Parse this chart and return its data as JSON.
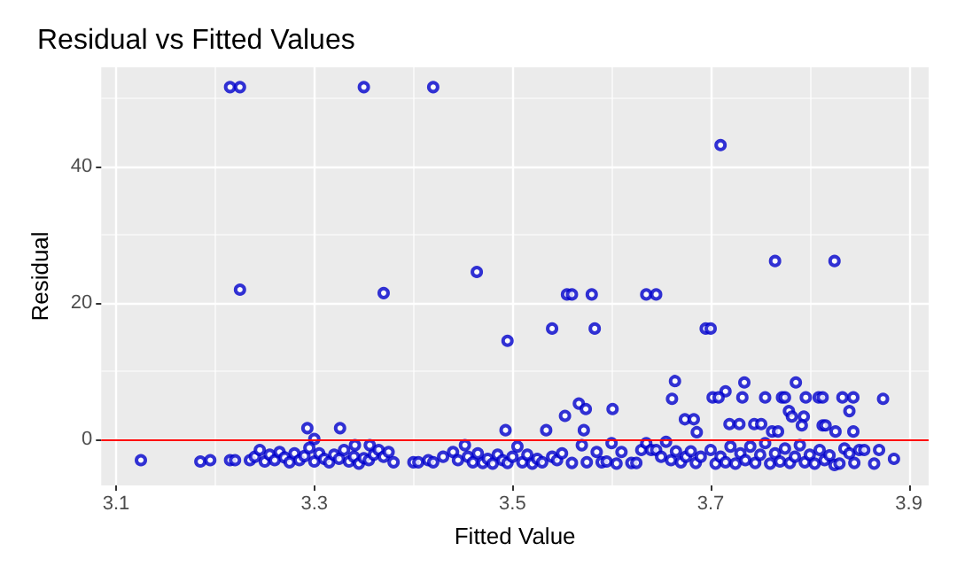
{
  "chart_data": {
    "type": "scatter",
    "title": "Residual vs Fitted Values",
    "xlabel": "Fitted Value",
    "ylabel": "Residual",
    "xlim": [
      3.085,
      3.92
    ],
    "xticks": [
      3.1,
      {
        "value": 3.2,
        "label": null
      },
      3.3,
      {
        "value": 3.4,
        "label": null
      },
      3.5,
      {
        "value": 3.6,
        "label": null
      },
      3.7,
      {
        "value": 3.8,
        "label": null
      },
      3.9
    ],
    "ylim": [
      -6.7,
      54.6
    ],
    "yticks": [
      0,
      {
        "value": 10,
        "label": null
      },
      20,
      {
        "value": 30,
        "label": null
      },
      40,
      {
        "value": 50,
        "label": null
      }
    ],
    "grid": true,
    "marker": "circle",
    "ref_lines": [
      {
        "axis": "y",
        "value": 0,
        "label": null,
        "color": "#ff0000",
        "line_style": "solid"
      }
    ],
    "series": [
      {
        "color": "#0000cc",
        "x": [
          3.215,
          3.225,
          3.225,
          3.35,
          3.37,
          3.42,
          3.464,
          3.495,
          3.54,
          3.555,
          3.56,
          3.58,
          3.583,
          3.635,
          3.645,
          3.695,
          3.7,
          3.71,
          3.765,
          3.825,
          3.664,
          3.661,
          3.734,
          3.786,
          3.715,
          3.702,
          3.708,
          3.732,
          3.755,
          3.772,
          3.775,
          3.796,
          3.809,
          3.813,
          3.833,
          3.844,
          3.874,
          3.84,
          3.779,
          3.782,
          3.794,
          3.674,
          3.683,
          3.553,
          3.567,
          3.574,
          3.601,
          3.493,
          3.534,
          3.572,
          3.686,
          3.719,
          3.729,
          3.744,
          3.751,
          3.762,
          3.768,
          3.792,
          3.813,
          3.816,
          3.844,
          3.826,
          3.293,
          3.326,
          3.3,
          3.452,
          3.341,
          3.356,
          3.125,
          3.185,
          3.195,
          3.215,
          3.22,
          3.235,
          3.24,
          3.245,
          3.25,
          3.255,
          3.26,
          3.265,
          3.27,
          3.275,
          3.28,
          3.285,
          3.29,
          3.295,
          3.3,
          3.305,
          3.31,
          3.315,
          3.32,
          3.325,
          3.33,
          3.335,
          3.34,
          3.345,
          3.35,
          3.355,
          3.36,
          3.365,
          3.37,
          3.375,
          3.38,
          3.4,
          3.405,
          3.415,
          3.42,
          3.43,
          3.44,
          3.445,
          3.455,
          3.46,
          3.465,
          3.47,
          3.475,
          3.48,
          3.485,
          3.49,
          3.495,
          3.5,
          3.505,
          3.51,
          3.515,
          3.52,
          3.525,
          3.53,
          3.54,
          3.545,
          3.55,
          3.56,
          3.57,
          3.575,
          3.585,
          3.59,
          3.595,
          3.6,
          3.605,
          3.61,
          3.62,
          3.625,
          3.63,
          3.635,
          3.64,
          3.645,
          3.65,
          3.655,
          3.66,
          3.665,
          3.67,
          3.675,
          3.68,
          3.685,
          3.69,
          3.7,
          3.705,
          3.71,
          3.715,
          3.72,
          3.725,
          3.73,
          3.735,
          3.74,
          3.745,
          3.75,
          3.755,
          3.76,
          3.765,
          3.77,
          3.775,
          3.78,
          3.785,
          3.79,
          3.795,
          3.8,
          3.805,
          3.81,
          3.815,
          3.82,
          3.825,
          3.83,
          3.835,
          3.84,
          3.845,
          3.85,
          3.855,
          3.865,
          3.87,
          3.885
        ],
        "values": [
          51.7,
          51.7,
          22,
          51.7,
          21.5,
          51.7,
          24.6,
          14.5,
          16.3,
          21.3,
          21.3,
          21.3,
          16.3,
          21.3,
          21.3,
          16.3,
          16.3,
          43.2,
          26.2,
          26.2,
          8.6,
          6,
          8.4,
          8.4,
          7.1,
          6.2,
          6.2,
          6.2,
          6.2,
          6.2,
          6.2,
          6.2,
          6.2,
          6.2,
          6.2,
          6.2,
          6,
          4.2,
          4.2,
          3.4,
          3.4,
          3,
          3,
          3.5,
          5.3,
          4.5,
          4.5,
          1.4,
          1.4,
          1.4,
          1.1,
          2.3,
          2.3,
          2.3,
          2.3,
          1.2,
          1.2,
          2.1,
          2.1,
          2.1,
          1.2,
          1.2,
          1.7,
          1.7,
          0.1,
          -0.8,
          -0.8,
          -0.8,
          -3,
          -3.2,
          -3,
          -3,
          -3,
          -3,
          -2.5,
          -1.5,
          -3.2,
          -2.2,
          -3,
          -1.8,
          -2.6,
          -3.3,
          -2,
          -3,
          -2.4,
          -1.2,
          -3.2,
          -2,
          -2.8,
          -3.3,
          -2.2,
          -2.8,
          -1.5,
          -3.2,
          -2.5,
          -3.5,
          -2.7,
          -3,
          -2.2,
          -1.5,
          -2.5,
          -1.8,
          -3.3,
          -3.3,
          -3.3,
          -3,
          -3.3,
          -2.5,
          -1.8,
          -3,
          -2.5,
          -3.3,
          -2,
          -3.4,
          -2.8,
          -3.5,
          -2.2,
          -3,
          -3.4,
          -2.5,
          -1,
          -3.3,
          -2.2,
          -3.5,
          -2.8,
          -3.3,
          -2.5,
          -3,
          -2,
          -3.4,
          -0.8,
          -3.3,
          -1.8,
          -3.3,
          -3.2,
          -0.5,
          -3.5,
          -1.8,
          -3.4,
          -3.4,
          -1.5,
          -0.5,
          -1.5,
          -1.5,
          -2.5,
          -0.3,
          -3,
          -1.7,
          -3.3,
          -2.5,
          -1.7,
          -3.4,
          -2.5,
          -1.5,
          -3.5,
          -2.5,
          -3.3,
          -1,
          -3.5,
          -2,
          -3,
          -1,
          -3.4,
          -2.2,
          -0.5,
          -3.5,
          -2,
          -3.2,
          -1.3,
          -3.4,
          -2.5,
          -0.8,
          -3.3,
          -2.2,
          -3.5,
          -1.5,
          -3,
          -2.3,
          -3.7,
          -3.5,
          -1.3,
          -2,
          -3.4,
          -1.5,
          -1.5,
          -3.5,
          -1.5,
          -2.8
        ]
      }
    ]
  }
}
